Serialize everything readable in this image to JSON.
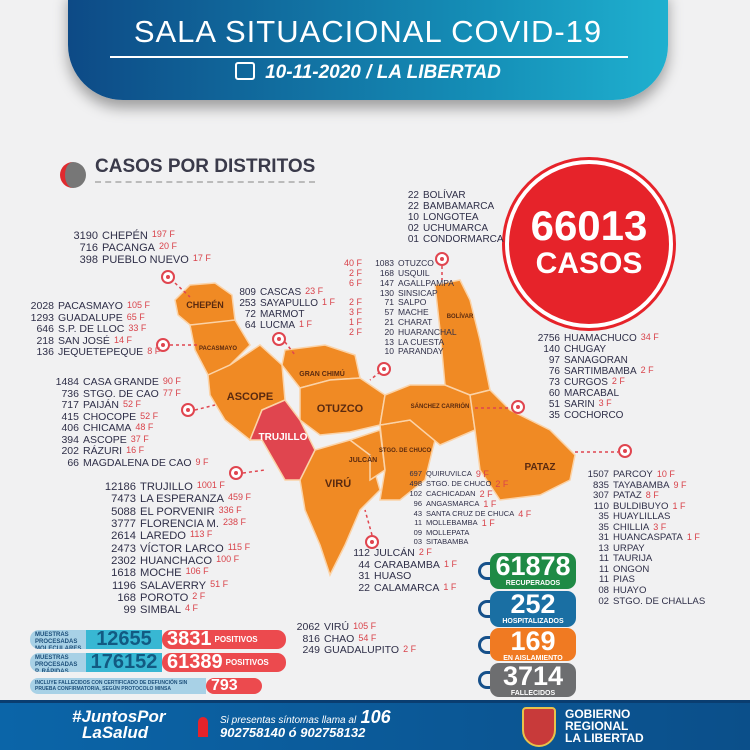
{
  "header": {
    "title": "SALA SITUACIONAL COVID-19",
    "date_region": "10-11-2020 / LA LIBERTAD"
  },
  "section_title": "CASOS POR DISTRITOS",
  "total": {
    "value": "66013",
    "label": "CASOS"
  },
  "map": {
    "provinces": {
      "chepen": "CHEPÉN",
      "pacasmayo": "PACASMAYO",
      "ascope": "ASCOPE",
      "trujillo": "TRUJILLO",
      "gran_chimu": "GRAN CHIMÚ",
      "otuzco": "OTUZCO",
      "viru": "VIRÚ",
      "julcan": "JULCÁN",
      "santiago_de_chuco": "STGO. DE CHUCO",
      "sanchez_carrion": "SÁNCHEZ CARRIÓN",
      "bolivar": "BOLÍVAR",
      "pataz": "PATAZ"
    },
    "colors": {
      "province": "#f08a24",
      "trujillo": "#e0454f",
      "deaths": "#d9434b"
    }
  },
  "districts": {
    "chepen": [
      {
        "n": "3190",
        "name": "CHEPÉN",
        "f": "197 F"
      },
      {
        "n": "716",
        "name": "PACANGA",
        "f": "20 F"
      },
      {
        "n": "398",
        "name": "PUEBLO NUEVO",
        "f": "17 F"
      }
    ],
    "pacasmayo": [
      {
        "n": "2028",
        "name": "PACASMAYO",
        "f": "105 F"
      },
      {
        "n": "1293",
        "name": "GUADALUPE",
        "f": "65 F"
      },
      {
        "n": "646",
        "name": "S.P. DE LLOC",
        "f": "33 F"
      },
      {
        "n": "218",
        "name": "SAN JOSÉ",
        "f": "14 F"
      },
      {
        "n": "136",
        "name": "JEQUETEPEQUE",
        "f": "8 F"
      }
    ],
    "ascope": [
      {
        "n": "1484",
        "name": "CASA GRANDE",
        "f": "90 F"
      },
      {
        "n": "736",
        "name": "STGO. DE CAO",
        "f": "77 F"
      },
      {
        "n": "717",
        "name": "PAIJÁN",
        "f": "52 F"
      },
      {
        "n": "415",
        "name": "CHOCOPE",
        "f": "52 F"
      },
      {
        "n": "406",
        "name": "CHICAMA",
        "f": "48 F"
      },
      {
        "n": "394",
        "name": "ASCOPE",
        "f": "37 F"
      },
      {
        "n": "202",
        "name": "RÁZURI",
        "f": "16 F"
      },
      {
        "n": "66",
        "name": "MAGDALENA DE CAO",
        "f": "9 F"
      }
    ],
    "gran_chimu": [
      {
        "n": "809",
        "name": "CASCAS",
        "f": "23 F"
      },
      {
        "n": "253",
        "name": "SAYAPULLO",
        "f": "1 F"
      },
      {
        "n": "72",
        "name": "MARMOT",
        "f": ""
      },
      {
        "n": "64",
        "name": "LUCMA",
        "f": "1 F"
      }
    ],
    "otuzco": [
      {
        "n": "1083",
        "name": "OTUZCO",
        "f": "40 F"
      },
      {
        "n": "168",
        "name": "USQUIL",
        "f": "2 F"
      },
      {
        "n": "147",
        "name": "AGALLPAMPA",
        "f": "6 F"
      },
      {
        "n": "130",
        "name": "SINSICAP",
        "f": ""
      },
      {
        "n": "71",
        "name": "SALPO",
        "f": "2 F"
      },
      {
        "n": "57",
        "name": "MACHE",
        "f": "3 F"
      },
      {
        "n": "21",
        "name": "CHARAT",
        "f": "1 F"
      },
      {
        "n": "20",
        "name": "HUARANCHAL",
        "f": "2 F"
      },
      {
        "n": "13",
        "name": "LA CUESTA",
        "f": ""
      },
      {
        "n": "10",
        "name": "PARANDAY",
        "f": ""
      }
    ],
    "bolivar": [
      {
        "n": "22",
        "name": "BOLÍVAR",
        "f": ""
      },
      {
        "n": "22",
        "name": "BAMBAMARCA",
        "f": ""
      },
      {
        "n": "10",
        "name": "LONGOTEA",
        "f": ""
      },
      {
        "n": "02",
        "name": "UCHUMARCA",
        "f": ""
      },
      {
        "n": "01",
        "name": "CONDORMARCA",
        "f": ""
      }
    ],
    "sanchez_carrion": [
      {
        "n": "2756",
        "name": "HUAMACHUCO",
        "f": "34 F"
      },
      {
        "n": "140",
        "name": "CHUGAY",
        "f": ""
      },
      {
        "n": "97",
        "name": "SANAGORAN",
        "f": ""
      },
      {
        "n": "76",
        "name": "SARTIMBAMBA",
        "f": "2 F"
      },
      {
        "n": "73",
        "name": "CURGOS",
        "f": "2 F"
      },
      {
        "n": "60",
        "name": "MARCABAL",
        "f": ""
      },
      {
        "n": "51",
        "name": "SARIN",
        "f": "3 F"
      },
      {
        "n": "35",
        "name": "COCHORCO",
        "f": ""
      }
    ],
    "trujillo": [
      {
        "n": "12186",
        "name": "TRUJILLO",
        "f": "1001 F"
      },
      {
        "n": "7473",
        "name": "LA ESPERANZA",
        "f": "459 F"
      },
      {
        "n": "5088",
        "name": "EL PORVENIR",
        "f": "336 F"
      },
      {
        "n": "3777",
        "name": "FLORENCIA M.",
        "f": "238 F"
      },
      {
        "n": "2614",
        "name": "LAREDO",
        "f": "113 F"
      },
      {
        "n": "2473",
        "name": "VÍCTOR LARCO",
        "f": "115 F"
      },
      {
        "n": "2302",
        "name": "HUANCHACO",
        "f": "100 F"
      },
      {
        "n": "1618",
        "name": "MOCHE",
        "f": "106 F"
      },
      {
        "n": "1196",
        "name": "SALAVERRY",
        "f": "51 F"
      },
      {
        "n": "168",
        "name": "POROTO",
        "f": "2 F"
      },
      {
        "n": "99",
        "name": "SIMBAL",
        "f": "4 F"
      }
    ],
    "santiago_de_chuco": [
      {
        "n": "697",
        "name": "QUIRUVILCA",
        "f": "9 F"
      },
      {
        "n": "498",
        "name": "STGO. DE CHUCO",
        "f": "2 F"
      },
      {
        "n": "102",
        "name": "CACHICADAN",
        "f": "2 F"
      },
      {
        "n": "96",
        "name": "ANGASMARCA",
        "f": "1 F"
      },
      {
        "n": "43",
        "name": "SANTA CRUZ DE CHUCA",
        "f": "4 F"
      },
      {
        "n": "11",
        "name": "MOLLEBAMBA",
        "f": "1 F"
      },
      {
        "n": "09",
        "name": "MOLLEPATA",
        "f": ""
      },
      {
        "n": "03",
        "name": "SITABAMBA",
        "f": ""
      }
    ],
    "julcan": [
      {
        "n": "112",
        "name": "JULCÁN",
        "f": "2 F"
      },
      {
        "n": "44",
        "name": "CARABAMBA",
        "f": "1 F"
      },
      {
        "n": "31",
        "name": "HUASO",
        "f": ""
      },
      {
        "n": "22",
        "name": "CALAMARCA",
        "f": "1 F"
      }
    ],
    "viru": [
      {
        "n": "2062",
        "name": "VIRÚ",
        "f": "105 F"
      },
      {
        "n": "816",
        "name": "CHAO",
        "f": "54 F"
      },
      {
        "n": "249",
        "name": "GUADALUPITO",
        "f": "2 F"
      }
    ],
    "pataz": [
      {
        "n": "1507",
        "name": "PARCOY",
        "f": "10 F"
      },
      {
        "n": "835",
        "name": "TAYABAMBA",
        "f": "9 F"
      },
      {
        "n": "307",
        "name": "PATAZ",
        "f": "8 F"
      },
      {
        "n": "110",
        "name": "BULDIBUYO",
        "f": "1 F"
      },
      {
        "n": "35",
        "name": "HUAYLILLAS",
        "f": ""
      },
      {
        "n": "35",
        "name": "CHILLIA",
        "f": "3 F"
      },
      {
        "n": "31",
        "name": "HUANCASPATA",
        "f": "1 F"
      },
      {
        "n": "13",
        "name": "URPAY",
        "f": ""
      },
      {
        "n": "11",
        "name": "TAURIJA",
        "f": ""
      },
      {
        "n": "11",
        "name": "ONGON",
        "f": ""
      },
      {
        "n": "11",
        "name": "PIAS",
        "f": ""
      },
      {
        "n": "08",
        "name": "HUAYO",
        "f": ""
      },
      {
        "n": "02",
        "name": "STGO. DE CHALLAS",
        "f": ""
      }
    ]
  },
  "stats": [
    {
      "value": "61878",
      "label": "RECUPERADOS",
      "color": "#1f8a45"
    },
    {
      "value": "252",
      "label": "HOSPITALIZADOS",
      "color": "#1a6fa3"
    },
    {
      "value": "169",
      "label": "EN AISLAMIENTO",
      "color": "#f07a22"
    },
    {
      "value": "3714",
      "label": "FALLECIDOS",
      "color": "#6d6e70"
    }
  ],
  "samples": [
    {
      "label": "MUESTRAS PROCESADAS MOLECULARES",
      "total": "12655",
      "positive": "3831",
      "positive_label": "POSITIVOS"
    },
    {
      "label": "MUESTRAS PROCESADAS P. RÁPIDAS",
      "total": "176152",
      "positive": "61389",
      "positive_label": "POSITIVOS"
    }
  ],
  "note": {
    "text": "INCLUYE FALLECIDOS CON CERTIFICADO DE DEFUNCIÓN SIN PRUEBA CONFIRMATORIA, SEGÚN PROTOCOLO MINSA",
    "value": "793"
  },
  "footer": {
    "hashtag1": "#JuntosPor",
    "hashtag2": "LaSalud",
    "call_text": "Si presentas síntomas llama al",
    "call_number": "106",
    "phones": "902758140 ó 902758132",
    "gov1": "GOBIERNO",
    "gov2": "REGIONAL",
    "gov3": "LA LIBERTAD"
  }
}
